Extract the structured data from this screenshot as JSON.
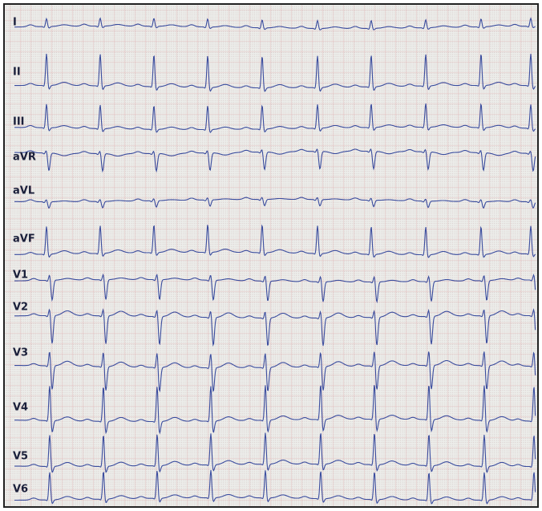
{
  "leads": [
    "I",
    "II",
    "III",
    "aVR",
    "aVL",
    "aVF",
    "V1",
    "V2",
    "V3",
    "V4",
    "V5",
    "V6"
  ]
}
